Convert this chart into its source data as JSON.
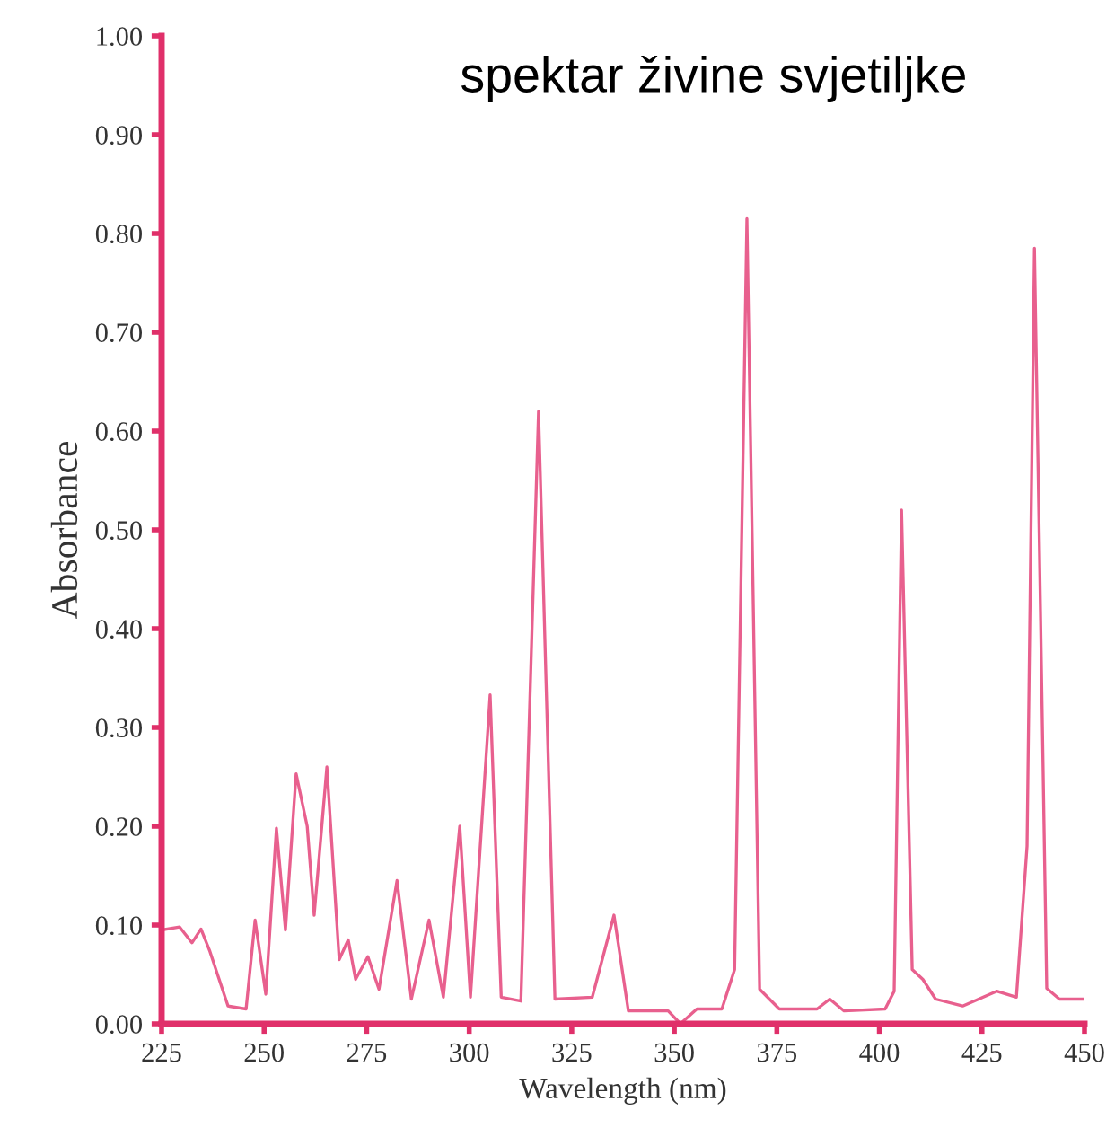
{
  "chart_data": {
    "type": "line",
    "title": "spektar živine svjetiljke",
    "xlabel": "Wavelength (nm)",
    "ylabel": "Absorbance",
    "x": [
      225,
      229.4,
      232.4,
      234.6,
      236.8,
      241.2,
      245.6,
      247.8,
      250.4,
      253,
      255.2,
      257.8,
      260.5,
      262.2,
      265.3,
      268.3,
      270.5,
      272.3,
      275.3,
      278,
      282.4,
      285.9,
      290.2,
      293.7,
      297.7,
      300.3,
      305.1,
      307.8,
      312.6,
      316.9,
      320.9,
      330,
      335.3,
      338.8,
      348.5,
      351.5,
      355.5,
      361.6,
      364.7,
      367.7,
      370.8,
      375.6,
      384.8,
      387.9,
      391.4,
      401.4,
      403.6,
      405.4,
      408,
      410.6,
      413.7,
      420.3,
      428.6,
      433.4,
      436,
      437.8,
      440.8,
      443.9,
      450
    ],
    "series": [
      {
        "color": "#e8608e",
        "values": [
          0.095,
          0.098,
          0.082,
          0.096,
          0.073,
          0.018,
          0.015,
          0.105,
          0.03,
          0.198,
          0.095,
          0.253,
          0.2,
          0.11,
          0.26,
          0.065,
          0.085,
          0.045,
          0.068,
          0.035,
          0.145,
          0.025,
          0.105,
          0.027,
          0.2,
          0.027,
          0.333,
          0.027,
          0.023,
          0.62,
          0.025,
          0.027,
          0.11,
          0.013,
          0.013,
          0.0,
          0.015,
          0.015,
          0.055,
          0.815,
          0.035,
          0.015,
          0.015,
          0.025,
          0.013,
          0.015,
          0.033,
          0.52,
          0.055,
          0.045,
          0.025,
          0.018,
          0.033,
          0.027,
          0.18,
          0.785,
          0.036,
          0.025,
          0.025
        ]
      }
    ],
    "xlim": [
      225,
      450
    ],
    "xticks": [
      225,
      250,
      275,
      300,
      325,
      350,
      375,
      400,
      425,
      450
    ],
    "ylim": [
      0,
      1
    ],
    "yticks": [
      {
        "value": 0,
        "label": "0.00"
      },
      {
        "value": 0.1,
        "label": "0.10"
      },
      {
        "value": 0.2,
        "label": "0.20"
      },
      {
        "value": 0.3,
        "label": "0.30"
      },
      {
        "value": 0.4,
        "label": "0.40"
      },
      {
        "value": 0.5,
        "label": "0.50"
      },
      {
        "value": 0.6,
        "label": "0.60"
      },
      {
        "value": 0.7,
        "label": "0.70"
      },
      {
        "value": 0.8,
        "label": "0.80"
      },
      {
        "value": 0.9,
        "label": "0.90"
      },
      {
        "value": 1,
        "label": "1.00"
      }
    ],
    "grid": false,
    "legend": false,
    "marker": "none",
    "line_style": "solid"
  }
}
